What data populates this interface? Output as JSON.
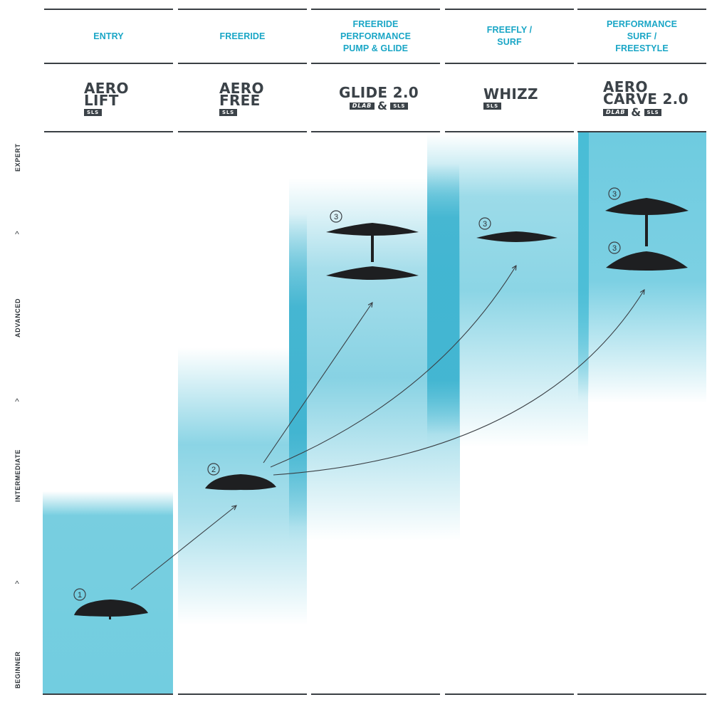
{
  "categories": [
    {
      "lines": [
        "ENTRY"
      ]
    },
    {
      "lines": [
        "FREERIDE"
      ]
    },
    {
      "lines": [
        "FREERIDE",
        "PERFORMANCE",
        "PUMP & GLIDE"
      ]
    },
    {
      "lines": [
        "FREEFLY /",
        "SURF"
      ]
    },
    {
      "lines": [
        "PERFORMANCE",
        "SURF /",
        "FREESTYLE"
      ]
    }
  ],
  "products": [
    {
      "lines": [
        "AERO",
        "LIFT"
      ],
      "badges": [
        "SLS"
      ]
    },
    {
      "lines": [
        "AERO",
        "FREE"
      ],
      "badges": [
        "SLS"
      ]
    },
    {
      "lines": [
        "GLIDE 2.0"
      ],
      "badges": [
        "DLAB",
        "&",
        "SLS"
      ]
    },
    {
      "lines": [
        "WHIZZ"
      ],
      "badges": [
        "SLS"
      ]
    },
    {
      "lines": [
        "AERO",
        "CARVE 2.0"
      ],
      "badges": [
        "DLAB",
        "&",
        "SLS"
      ]
    }
  ],
  "levels": [
    "EXPERT",
    "ADVANCED",
    "INTERMEDIATE",
    "BEGINNER"
  ],
  "chevron_glyph": "^",
  "step_markers": [
    "1",
    "2",
    "3",
    "3",
    "3",
    "3"
  ],
  "colors": {
    "accent_text": "#1aa6c6",
    "band": "#49bdd6",
    "band_strong": "#3bb3cf",
    "dark_text": "#3b4248",
    "foil": "#1e1f21"
  },
  "icons": [
    "foil-wing-icon",
    "arrow-icon",
    "chevron-up-icon"
  ]
}
